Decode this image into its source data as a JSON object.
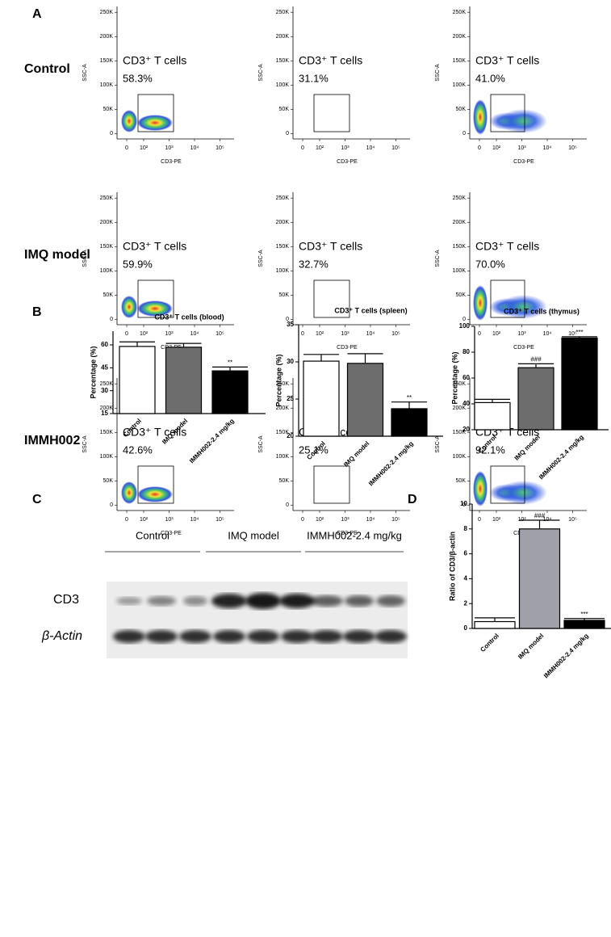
{
  "panel_labels": [
    "A",
    "B",
    "C",
    "D"
  ],
  "flow": {
    "rows": [
      "Control",
      "IMQ model",
      "IMMH002"
    ],
    "gate_label": "CD3⁺ T cells",
    "xlabel": "CD3-PE",
    "ylabel": "SSC-A",
    "yticks": [
      0,
      {
        "value": 50000,
        "label": "50K"
      },
      {
        "value": 100000,
        "label": "100K"
      },
      {
        "value": 150000,
        "label": "150K"
      },
      {
        "value": 200000,
        "label": "200K"
      },
      {
        "value": 250000,
        "label": "250K"
      }
    ],
    "ylim": [
      -11000,
      262000
    ],
    "xticks": [
      0,
      {
        "value": 100,
        "label": "10²"
      },
      {
        "value": 1000,
        "label": "10³"
      },
      {
        "value": 10000,
        "label": "10⁴"
      },
      {
        "value": 100000,
        "label": "10⁵"
      }
    ],
    "percent": [
      [
        58.3,
        31.1,
        41.0
      ],
      [
        59.9,
        32.7,
        70.0
      ],
      [
        42.6,
        25.1,
        92.1
      ]
    ],
    "percent_labels": [
      [
        "58.3%",
        "31.1%",
        "41.0%"
      ],
      [
        "59.9%",
        "32.7%",
        "70.0%"
      ],
      [
        "42.6%",
        "25.1%",
        "92.1%"
      ]
    ]
  },
  "chart_data": [
    {
      "type": "bar",
      "title": "CD3⁺ T cells (blood)",
      "ylabel": "Percentage (%)",
      "categories": [
        "Control",
        "IMQ model",
        "IMMH002-2.4 mg/kg"
      ],
      "values": [
        59,
        58.5,
        43
      ],
      "errors": [
        3,
        2.5,
        2.5
      ],
      "annotations": [
        null,
        null,
        "**"
      ],
      "colors": [
        "#ffffff",
        "#6d6d6d",
        "#000000"
      ],
      "ylim": [
        15,
        69
      ],
      "yticks": [
        15,
        30,
        45,
        60
      ]
    },
    {
      "type": "bar",
      "title": "CD3⁺ T cells (spleen)",
      "ylabel": "Percentage (%)",
      "categories": [
        "Control",
        "IMQ model",
        "IMMH002-2.4 mg/kg"
      ],
      "values": [
        30.1,
        29.8,
        23.7
      ],
      "errors": [
        0.9,
        1.3,
        0.9
      ],
      "annotations": [
        null,
        null,
        "**"
      ],
      "colors": [
        "#ffffff",
        "#6d6d6d",
        "#000000"
      ],
      "ylim": [
        20,
        35
      ],
      "yticks": [
        20,
        25,
        30,
        35
      ]
    },
    {
      "type": "bar",
      "title": "CD3⁺ T cells (thymus)",
      "ylabel": "Percentage (%)",
      "categories": [
        "Control",
        "IMQ model",
        "IMMH002-2.4 mg/kg"
      ],
      "values": [
        41,
        68,
        91
      ],
      "errors": [
        2.5,
        3,
        1
      ],
      "annotations": [
        null,
        "###",
        "***"
      ],
      "colors": [
        "#ffffff",
        "#6d6d6d",
        "#000000"
      ],
      "ylim": [
        20,
        100
      ],
      "yticks": [
        20,
        40,
        60,
        80,
        100
      ]
    },
    {
      "type": "bar",
      "ylabel": "Ratio of CD3/β-actin",
      "categories": [
        "Control",
        "IMQ model",
        "IMMH002-2.4 mg/kg"
      ],
      "values": [
        0.55,
        8.0,
        0.65
      ],
      "errors": [
        0.3,
        0.7,
        0.15
      ],
      "annotations": [
        null,
        "###",
        "***"
      ],
      "colors": [
        "#ffffff",
        "#a0a0a8",
        "#000000"
      ],
      "ylim": [
        0,
        10
      ],
      "yticks": [
        0,
        2,
        4,
        6,
        8,
        10
      ]
    }
  ],
  "blot": {
    "groups": [
      "Control",
      "IMQ model",
      "IMMH002-2.4 mg/kg"
    ],
    "rows": [
      "CD3",
      "β-Actin"
    ]
  }
}
